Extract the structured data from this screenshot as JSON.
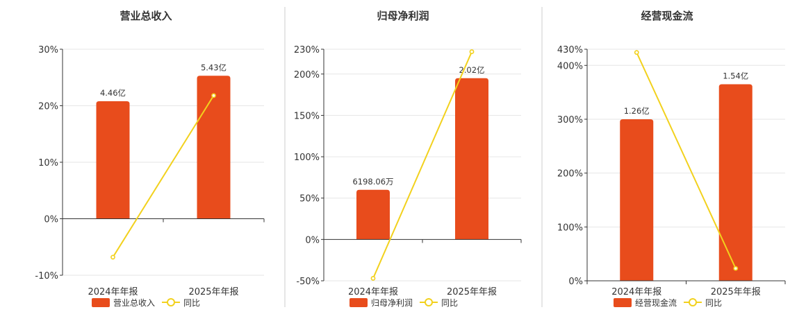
{
  "colors": {
    "bar": "#e84c1c",
    "line": "#f2d11d",
    "grid": "#e6e6e6",
    "axis": "#333333",
    "divider": "#cccccc"
  },
  "legend": {
    "yoy_label": "同比"
  },
  "chart_data": [
    {
      "type": "bar",
      "title": "营业总收入",
      "categories": [
        "2024年年报",
        "2025年年报"
      ],
      "series": [
        {
          "name": "营业总收入",
          "type": "bar",
          "values": [
            20.8,
            25.3
          ],
          "labels": [
            "4.46亿",
            "5.43亿"
          ]
        },
        {
          "name": "同比",
          "type": "line",
          "values": [
            -6.8,
            21.8
          ]
        }
      ],
      "ylim": [
        -10,
        30
      ],
      "yticks": [
        -10,
        0,
        10,
        20,
        30
      ],
      "ytick_labels": [
        "-10%",
        "0%",
        "10%",
        "20%",
        "30%"
      ],
      "grid": true,
      "legend_position": "bottom"
    },
    {
      "type": "bar",
      "title": "归母净利润",
      "categories": [
        "2024年年报",
        "2025年年报"
      ],
      "series": [
        {
          "name": "归母净利润",
          "type": "bar",
          "values": [
            60,
            195
          ],
          "labels": [
            "6198.06万",
            "2.02亿"
          ]
        },
        {
          "name": "同比",
          "type": "line",
          "values": [
            -47,
            227
          ]
        }
      ],
      "ylim": [
        -50,
        230
      ],
      "yticks": [
        -50,
        0,
        50,
        100,
        150,
        200,
        230
      ],
      "ytick_labels": [
        "-50%",
        "0%",
        "50%",
        "100%",
        "150%",
        "200%",
        "230%"
      ],
      "grid": true,
      "legend_position": "bottom"
    },
    {
      "type": "bar",
      "title": "经营现金流",
      "categories": [
        "2024年年报",
        "2025年年报"
      ],
      "series": [
        {
          "name": "经营现金流",
          "type": "bar",
          "values": [
            300,
            365
          ],
          "labels": [
            "1.26亿",
            "1.54亿"
          ]
        },
        {
          "name": "同比",
          "type": "line",
          "values": [
            424,
            23
          ]
        }
      ],
      "ylim": [
        0,
        430
      ],
      "yticks": [
        0,
        100,
        200,
        300,
        400,
        430
      ],
      "ytick_labels": [
        "0%",
        "100%",
        "200%",
        "300%",
        "400%",
        "430%"
      ],
      "grid": true,
      "legend_position": "bottom"
    }
  ]
}
